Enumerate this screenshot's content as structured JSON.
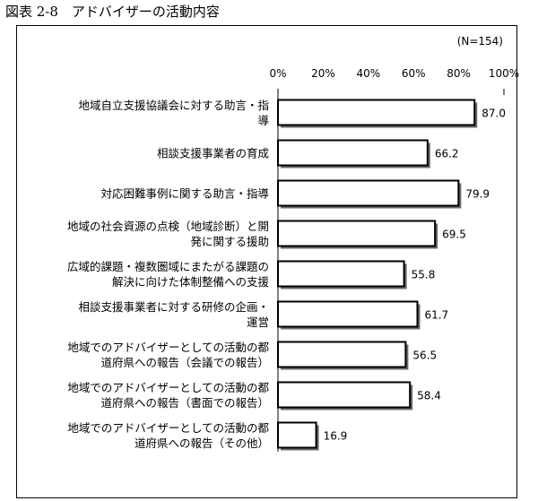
{
  "figure_caption": "図表 2-8　アドバイザーの活動内容",
  "chart_data": {
    "type": "bar",
    "orientation": "horizontal",
    "title": "",
    "note": "(N=154)",
    "xlim": [
      0,
      100
    ],
    "ticks": [
      "0%",
      "20%",
      "40%",
      "60%",
      "80%",
      "100%"
    ],
    "categories": [
      [
        "地域自立支援協議会に対する助言・指",
        "導"
      ],
      [
        "相談支援事業者の育成"
      ],
      [
        "対応困難事例に関する助言・指導"
      ],
      [
        "地域の社会資源の点検（地域診断）と開",
        "発に関する援助"
      ],
      [
        "広域的課題・複数圏域にまたがる課題の",
        "解決に向けた体制整備への支援"
      ],
      [
        "相談支援事業者に対する研修の企画・",
        "運営"
      ],
      [
        "地域でのアドバイザーとしての活動の都",
        "道府県への報告（会議での報告）"
      ],
      [
        "地域でのアドバイザーとしての活動の都",
        "道府県への報告（書面での報告）"
      ],
      [
        "地域でのアドバイザーとしての活動の都",
        "道府県への報告（その他）"
      ]
    ],
    "values": [
      87.0,
      66.2,
      79.9,
      69.5,
      55.8,
      61.7,
      56.5,
      58.4,
      16.9
    ],
    "value_labels": [
      "87.0",
      "66.2",
      "79.9",
      "69.5",
      "55.8",
      "61.7",
      "56.5",
      "58.4",
      "16.9"
    ],
    "colors": {
      "bar": "#ffffff",
      "bar_stroke": "#000000",
      "shadow": "#6b6b6b"
    }
  }
}
